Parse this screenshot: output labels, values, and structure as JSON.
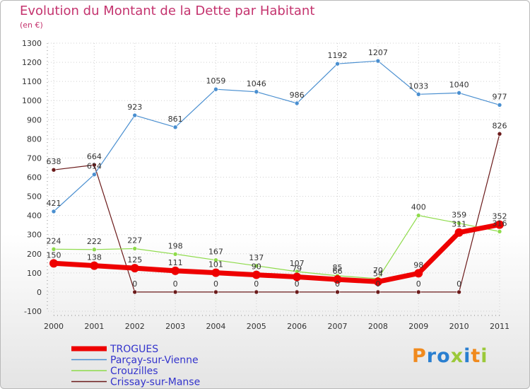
{
  "title": "Evolution du Montant de la Dette par Habitant",
  "unit_label": "(en €)",
  "logo_text": "Proxiti",
  "colors": {
    "title": "#c4336e",
    "TROGUES": "#ee0000",
    "Parçay-sur-Vienne": "#4a8fd0",
    "Crouzilles": "#8edb4a",
    "Crissay-sur-Manse": "#6b1a1a",
    "legend_text": "#3333cc"
  },
  "chart_data": {
    "type": "line",
    "x": [
      "2000",
      "2001",
      "2002",
      "2003",
      "2004",
      "2005",
      "2006",
      "2007",
      "2008",
      "2009",
      "2010",
      "2011"
    ],
    "ylim": [
      -100,
      1300
    ],
    "yticks": [
      -100,
      0,
      100,
      200,
      300,
      400,
      500,
      600,
      700,
      800,
      900,
      1000,
      1100,
      1200,
      1300
    ],
    "grid": true,
    "legend_position": "bottom-left",
    "series": [
      {
        "name": "TROGUES",
        "values": [
          150,
          138,
          125,
          111,
          101,
          90,
          79,
          66,
          54,
          98,
          311,
          352
        ]
      },
      {
        "name": "Parçay-sur-Vienne",
        "values": [
          421,
          614,
          923,
          861,
          1059,
          1046,
          986,
          1192,
          1207,
          1033,
          1040,
          977
        ]
      },
      {
        "name": "Crouzilles",
        "values": [
          224,
          222,
          227,
          198,
          167,
          137,
          107,
          85,
          70,
          400,
          359,
          316
        ]
      },
      {
        "name": "Crissay-sur-Manse",
        "values": [
          638,
          664,
          0,
          0,
          0,
          0,
          0,
          0,
          0,
          0,
          0,
          826
        ]
      }
    ]
  }
}
